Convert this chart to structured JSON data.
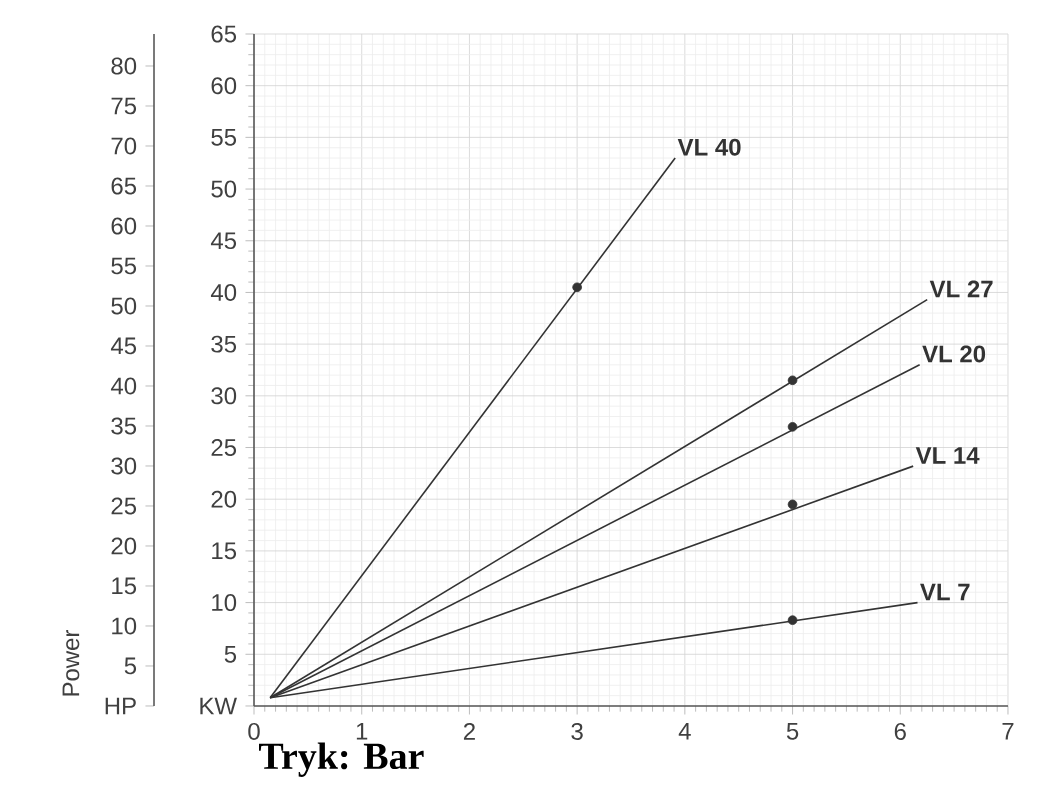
{
  "chart_data": {
    "type": "line",
    "xlabel": "Tryk: Bar",
    "y2label": "Power",
    "xlim": [
      0,
      7
    ],
    "xticks": [
      0,
      1,
      2,
      3,
      4,
      5,
      6,
      7
    ],
    "ylim": [
      0,
      65
    ],
    "yticks": [
      {
        "value": 0,
        "label": "KW"
      },
      5,
      10,
      15,
      20,
      25,
      30,
      35,
      40,
      45,
      50,
      55,
      60,
      65
    ],
    "y2lim": [
      0,
      84
    ],
    "y2ticks": [
      {
        "value": 0,
        "label": "HP"
      },
      5,
      10,
      15,
      20,
      25,
      30,
      35,
      40,
      45,
      50,
      55,
      60,
      65,
      70,
      75,
      80
    ],
    "grid": true,
    "line_style": "solid",
    "series": [
      {
        "name": "VL 40",
        "color": "#333333",
        "x": [
          0.15,
          3.91
        ],
        "values": [
          0.8,
          53
        ]
      },
      {
        "name": "VL 27",
        "color": "#333333",
        "x": [
          0.15,
          6.25
        ],
        "values": [
          0.8,
          39.3
        ]
      },
      {
        "name": "VL 20",
        "color": "#333333",
        "x": [
          0.15,
          6.18
        ],
        "values": [
          0.8,
          33
        ]
      },
      {
        "name": "VL 14",
        "color": "#333333",
        "x": [
          0.15,
          6.12
        ],
        "values": [
          0.8,
          23.2
        ]
      },
      {
        "name": "VL 7",
        "color": "#333333",
        "x": [
          0.15,
          6.16
        ],
        "values": [
          0.8,
          10
        ]
      },
      {
        "type": "scatter",
        "marker": "circle",
        "color": "#333333",
        "x": [
          3,
          5,
          5,
          5,
          5
        ],
        "values": [
          40.5,
          31.5,
          27,
          19.5,
          8.3
        ]
      }
    ]
  }
}
